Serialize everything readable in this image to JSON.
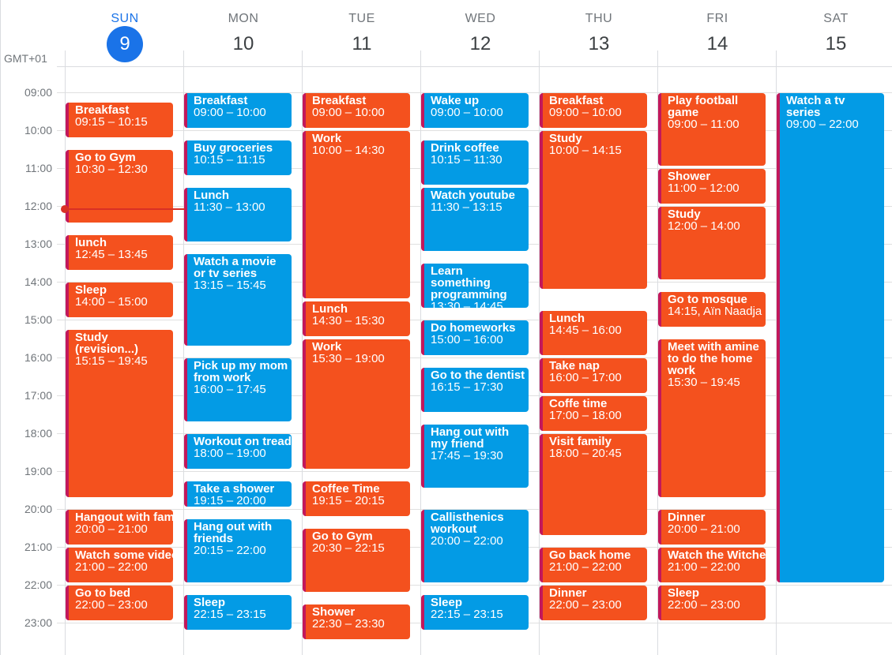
{
  "timezone": "GMT+01",
  "hours": [
    "09:00",
    "10:00",
    "11:00",
    "12:00",
    "13:00",
    "14:00",
    "15:00",
    "16:00",
    "17:00",
    "18:00",
    "19:00",
    "20:00",
    "21:00",
    "22:00",
    "23:00"
  ],
  "days": [
    {
      "dow": "SUN",
      "num": "9",
      "today": true
    },
    {
      "dow": "MON",
      "num": "10"
    },
    {
      "dow": "TUE",
      "num": "11"
    },
    {
      "dow": "WED",
      "num": "12"
    },
    {
      "dow": "THU",
      "num": "13"
    },
    {
      "dow": "FRI",
      "num": "14"
    },
    {
      "dow": "SAT",
      "num": "15"
    }
  ],
  "colors": {
    "orange": "#f4511e",
    "blue": "#039be5",
    "accent": "#1a73e8",
    "now_indicator": "#d93025",
    "event_border": "#c2185b"
  },
  "events": [
    {
      "day": 0,
      "title": "Breakfast",
      "time": "09:15 – 10:15",
      "start": "09:15",
      "end": "10:15",
      "color": "orange"
    },
    {
      "day": 0,
      "title": "Go to Gym",
      "time": "10:30 – 12:30",
      "start": "10:30",
      "end": "12:30",
      "color": "orange"
    },
    {
      "day": 0,
      "title": "lunch",
      "time": "12:45 – 13:45",
      "start": "12:45",
      "end": "13:45",
      "color": "orange"
    },
    {
      "day": 0,
      "title": "Sleep",
      "time": "14:00 – 15:00",
      "start": "14:00",
      "end": "15:00",
      "color": "orange"
    },
    {
      "day": 0,
      "title": "Study (revision...)",
      "time": "15:15 – 19:45",
      "start": "15:15",
      "end": "19:45",
      "color": "orange"
    },
    {
      "day": 0,
      "title": "Hangout with family",
      "time": "20:00 – 21:00",
      "start": "20:00",
      "end": "21:00",
      "color": "orange",
      "nowrap": true
    },
    {
      "day": 0,
      "title": "Watch some videos",
      "time": "21:00 – 22:00",
      "start": "21:00",
      "end": "22:00",
      "color": "orange",
      "nowrap": true
    },
    {
      "day": 0,
      "title": "Go to bed",
      "time": "22:00 – 23:00",
      "start": "22:00",
      "end": "23:00",
      "color": "orange"
    },
    {
      "day": 1,
      "title": "Breakfast",
      "time": "09:00 – 10:00",
      "start": "09:00",
      "end": "10:00",
      "color": "blue"
    },
    {
      "day": 1,
      "title": "Buy groceries",
      "time": "10:15 – 11:15",
      "start": "10:15",
      "end": "11:15",
      "color": "blue"
    },
    {
      "day": 1,
      "title": "Lunch",
      "time": "11:30 – 13:00",
      "start": "11:30",
      "end": "13:00",
      "color": "blue"
    },
    {
      "day": 1,
      "title": "Watch a movie or tv series",
      "time": "13:15 – 15:45",
      "start": "13:15",
      "end": "15:45",
      "color": "blue"
    },
    {
      "day": 1,
      "title": "Pick up my mom from work",
      "time": "16:00 – 17:45",
      "start": "16:00",
      "end": "17:45",
      "color": "blue"
    },
    {
      "day": 1,
      "title": "Workout on treadmill",
      "time": "18:00 – 19:00",
      "start": "18:00",
      "end": "19:00",
      "color": "blue",
      "nowrap": true
    },
    {
      "day": 1,
      "title": "Take a shower",
      "time": "19:15 – 20:00",
      "start": "19:15",
      "end": "20:00",
      "color": "blue"
    },
    {
      "day": 1,
      "title": "Hang out with friends",
      "time": "20:15 – 22:00",
      "start": "20:15",
      "end": "22:00",
      "color": "blue"
    },
    {
      "day": 1,
      "title": "Sleep",
      "time": "22:15 – 23:15",
      "start": "22:15",
      "end": "23:15",
      "color": "blue"
    },
    {
      "day": 2,
      "title": "Breakfast",
      "time": "09:00 – 10:00",
      "start": "09:00",
      "end": "10:00",
      "color": "orange"
    },
    {
      "day": 2,
      "title": "Work",
      "time": "10:00 – 14:30",
      "start": "10:00",
      "end": "14:30",
      "color": "orange"
    },
    {
      "day": 2,
      "title": "Lunch",
      "time": "14:30 – 15:30",
      "start": "14:30",
      "end": "15:30",
      "color": "orange"
    },
    {
      "day": 2,
      "title": "Work",
      "time": "15:30 – 19:00",
      "start": "15:30",
      "end": "19:00",
      "color": "orange"
    },
    {
      "day": 2,
      "title": "Coffee Time",
      "time": "19:15 – 20:15",
      "start": "19:15",
      "end": "20:15",
      "color": "orange"
    },
    {
      "day": 2,
      "title": "Go to Gym",
      "time": "20:30 – 22:15",
      "start": "20:30",
      "end": "22:15",
      "color": "orange"
    },
    {
      "day": 2,
      "title": "Shower",
      "time": "22:30 – 23:30",
      "start": "22:30",
      "end": "23:30",
      "color": "orange"
    },
    {
      "day": 3,
      "title": "Wake up",
      "time": "09:00 – 10:00",
      "start": "09:00",
      "end": "10:00",
      "color": "blue"
    },
    {
      "day": 3,
      "title": "Drink coffee",
      "time": "10:15 – 11:30",
      "start": "10:15",
      "end": "11:30",
      "color": "blue"
    },
    {
      "day": 3,
      "title": "Watch youtube",
      "time": "11:30 – 13:15",
      "start": "11:30",
      "end": "13:15",
      "color": "blue"
    },
    {
      "day": 3,
      "title": "Learn something programming",
      "time": "13:30 – 14:45",
      "start": "13:30",
      "end": "14:45",
      "color": "blue"
    },
    {
      "day": 3,
      "title": "Do homeworks",
      "time": "15:00 – 16:00",
      "start": "15:00",
      "end": "16:00",
      "color": "blue"
    },
    {
      "day": 3,
      "title": "Go to the dentist",
      "time": "16:15 – 17:30",
      "start": "16:15",
      "end": "17:30",
      "color": "blue"
    },
    {
      "day": 3,
      "title": "Hang out with my friend",
      "time": "17:45 – 19:30",
      "start": "17:45",
      "end": "19:30",
      "color": "blue"
    },
    {
      "day": 3,
      "title": "Callisthenics workout",
      "time": "20:00 – 22:00",
      "start": "20:00",
      "end": "22:00",
      "color": "blue"
    },
    {
      "day": 3,
      "title": "Sleep",
      "time": "22:15 – 23:15",
      "start": "22:15",
      "end": "23:15",
      "color": "blue"
    },
    {
      "day": 4,
      "title": "Breakfast",
      "time": "09:00 – 10:00",
      "start": "09:00",
      "end": "10:00",
      "color": "orange"
    },
    {
      "day": 4,
      "title": "Study",
      "time": "10:00 – 14:15",
      "start": "10:00",
      "end": "14:15",
      "color": "orange"
    },
    {
      "day": 4,
      "title": "Lunch",
      "time": "14:45 – 16:00",
      "start": "14:45",
      "end": "16:00",
      "color": "orange"
    },
    {
      "day": 4,
      "title": "Take nap",
      "time": "16:00 – 17:00",
      "start": "16:00",
      "end": "17:00",
      "color": "orange"
    },
    {
      "day": 4,
      "title": "Coffe time",
      "time": "17:00 – 18:00",
      "start": "17:00",
      "end": "18:00",
      "color": "orange"
    },
    {
      "day": 4,
      "title": "Visit family",
      "time": "18:00 – 20:45",
      "start": "18:00",
      "end": "20:45",
      "color": "orange"
    },
    {
      "day": 4,
      "title": "Go back home",
      "time": "21:00 – 22:00",
      "start": "21:00",
      "end": "22:00",
      "color": "orange"
    },
    {
      "day": 4,
      "title": "Dinner",
      "time": "22:00 – 23:00",
      "start": "22:00",
      "end": "23:00",
      "color": "orange"
    },
    {
      "day": 5,
      "title": "Play football game",
      "time": "09:00 – 11:00",
      "start": "09:00",
      "end": "11:00",
      "color": "orange"
    },
    {
      "day": 5,
      "title": "Shower",
      "time": "11:00 – 12:00",
      "start": "11:00",
      "end": "12:00",
      "color": "orange"
    },
    {
      "day": 5,
      "title": "Study",
      "time": "12:00 – 14:00",
      "start": "12:00",
      "end": "14:00",
      "color": "orange"
    },
    {
      "day": 5,
      "title": "Go to mosque",
      "time": "14:15, Aïn Naadja",
      "start": "14:15",
      "end": "15:15",
      "color": "orange"
    },
    {
      "day": 5,
      "title": "Meet with amine to do the home work",
      "time": "15:30 – 19:45",
      "start": "15:30",
      "end": "19:45",
      "color": "orange"
    },
    {
      "day": 5,
      "title": "Dinner",
      "time": "20:00 – 21:00",
      "start": "20:00",
      "end": "21:00",
      "color": "orange"
    },
    {
      "day": 5,
      "title": "Watch the Witcher",
      "time": "21:00 – 22:00",
      "start": "21:00",
      "end": "22:00",
      "color": "orange",
      "nowrap": true
    },
    {
      "day": 5,
      "title": "Sleep",
      "time": "22:00 – 23:00",
      "start": "22:00",
      "end": "23:00",
      "color": "orange"
    },
    {
      "day": 6,
      "title": "Watch a tv series",
      "time": "09:00 – 22:00",
      "start": "09:00",
      "end": "22:00",
      "color": "blue"
    }
  ]
}
